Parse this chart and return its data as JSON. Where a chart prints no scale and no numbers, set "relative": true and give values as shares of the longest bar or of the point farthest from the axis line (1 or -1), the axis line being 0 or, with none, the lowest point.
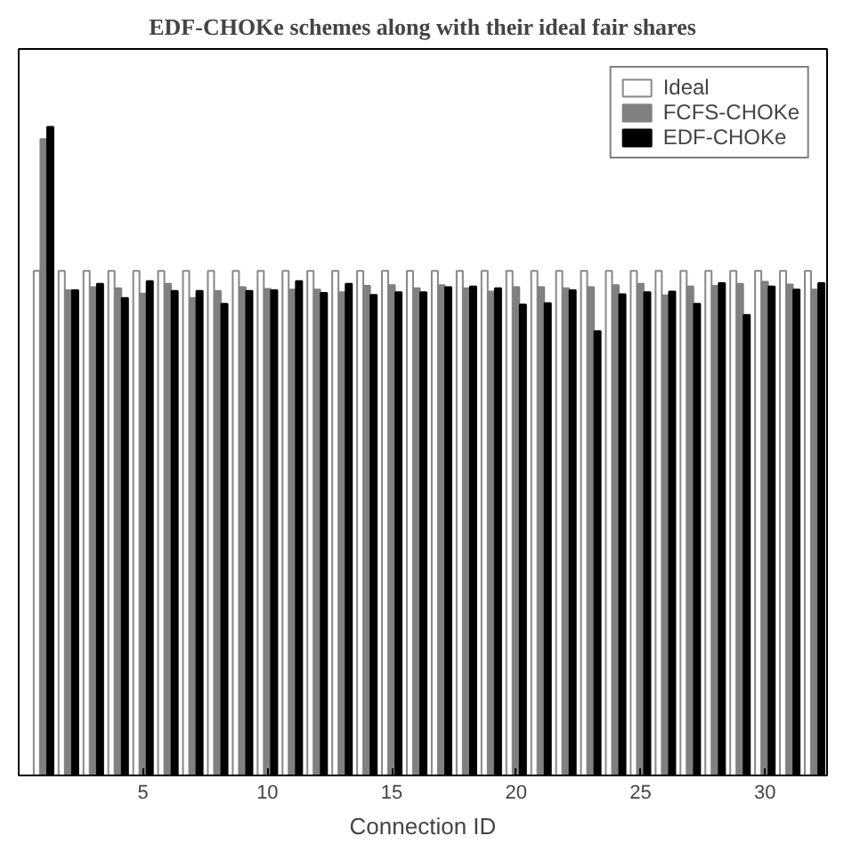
{
  "chart_data": {
    "type": "bar",
    "title": "EDF-CHOKe schemes along with their ideal fair shares",
    "xlabel": "Connection ID",
    "x": [
      1,
      2,
      3,
      4,
      5,
      6,
      7,
      8,
      9,
      10,
      11,
      12,
      13,
      14,
      15,
      16,
      17,
      18,
      19,
      20,
      21,
      22,
      23,
      24,
      25,
      26,
      27,
      28,
      29,
      30,
      31,
      32
    ],
    "xlim": [
      0,
      32.5
    ],
    "xticks": [
      5,
      10,
      15,
      20,
      25,
      30
    ],
    "relative": true,
    "grid": false,
    "legend": "top right",
    "series": [
      {
        "name": "Ideal",
        "color": "#ffffff",
        "values": [
          0.778,
          0.778,
          0.778,
          0.778,
          0.778,
          0.778,
          0.778,
          0.778,
          0.778,
          0.778,
          0.778,
          0.778,
          0.778,
          0.778,
          0.778,
          0.778,
          0.778,
          0.778,
          0.778,
          0.778,
          0.778,
          0.778,
          0.778,
          0.778,
          0.778,
          0.778,
          0.778,
          0.778,
          0.778,
          0.778,
          0.778,
          0.778
        ]
      },
      {
        "name": "FCFS-CHOKe",
        "color": "#808080",
        "values": [
          0.981,
          0.748,
          0.753,
          0.751,
          0.743,
          0.758,
          0.736,
          0.747,
          0.753,
          0.75,
          0.749,
          0.749,
          0.745,
          0.755,
          0.756,
          0.751,
          0.756,
          0.751,
          0.746,
          0.753,
          0.753,
          0.751,
          0.753,
          0.756,
          0.758,
          0.74,
          0.754,
          0.755,
          0.758,
          0.761,
          0.757,
          0.749
        ]
      },
      {
        "name": "EDF-CHOKe",
        "color": "#000000",
        "values": [
          1,
          0.748,
          0.758,
          0.736,
          0.762,
          0.747,
          0.747,
          0.727,
          0.747,
          0.748,
          0.762,
          0.744,
          0.758,
          0.741,
          0.745,
          0.745,
          0.753,
          0.754,
          0.751,
          0.726,
          0.728,
          0.748,
          0.685,
          0.742,
          0.745,
          0.746,
          0.727,
          0.759,
          0.71,
          0.754,
          0.749,
          0.759
        ]
      }
    ]
  }
}
